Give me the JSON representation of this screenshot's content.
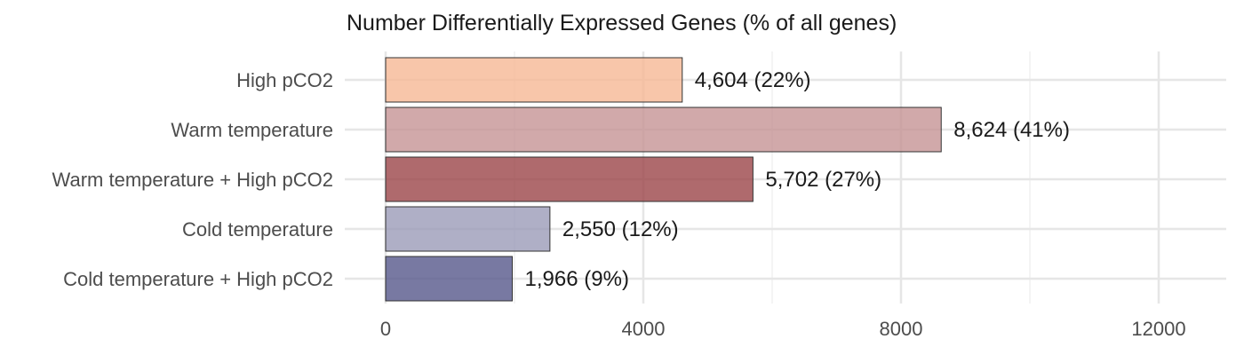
{
  "chart_data": {
    "type": "bar",
    "orientation": "horizontal",
    "title": "Number Differentially Expressed Genes (% of all genes)",
    "xlabel": "",
    "ylabel": "",
    "categories": [
      "High pCO2",
      "Warm temperature",
      "Warm temperature + High pCO2",
      "Cold temperature",
      "Cold temperature + High pCO2"
    ],
    "values": [
      4604,
      8624,
      5702,
      2550,
      1966
    ],
    "data_labels": [
      "4,604 (22%)",
      "8,624 (41%)",
      "5,702 (27%)",
      "2,550 (12%)",
      "1,966 (9%)"
    ],
    "bar_colors": [
      "#f6b895",
      "#c69395",
      "#9b4549",
      "#9b9bb8",
      "#56578b"
    ],
    "bar_opacity": 0.8,
    "xlim": [
      0,
      13000
    ],
    "x_ticks": [
      0,
      4000,
      8000,
      12000
    ],
    "x_tick_labels": [
      "0",
      "4000",
      "8000",
      "12000"
    ],
    "x_minor_ticks": [
      2000,
      6000,
      10000
    ],
    "grid": true,
    "legend": "none"
  }
}
